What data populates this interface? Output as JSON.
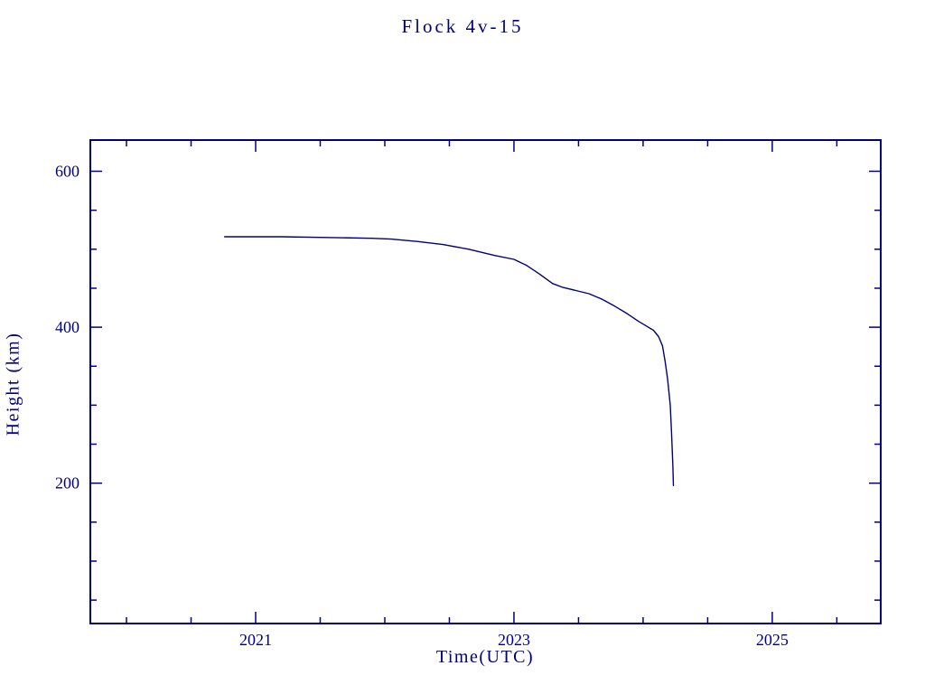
{
  "chart_data": {
    "type": "line",
    "title": "Flock 4v-15",
    "xlabel": "Time(UTC)",
    "ylabel": "Height (km)",
    "xlim": [
      2019.72,
      2025.84
    ],
    "ylim": [
      20,
      640
    ],
    "x_ticks": [
      2021,
      2023,
      2025
    ],
    "x_minor_step": 0.5,
    "y_ticks": [
      200,
      400,
      600
    ],
    "y_minor_step": 50,
    "grid": false,
    "legend": "none",
    "colors": {
      "axis": "#000080",
      "line": "#000080",
      "text": "#000080",
      "background": "#ffffff"
    },
    "series": [
      {
        "name": "Flock 4v-15 orbital height",
        "points": [
          [
            2020.76,
            516
          ],
          [
            2021.2,
            516
          ],
          [
            2021.6,
            515
          ],
          [
            2021.9,
            514
          ],
          [
            2022.05,
            513
          ],
          [
            2022.25,
            510
          ],
          [
            2022.45,
            506
          ],
          [
            2022.65,
            500
          ],
          [
            2022.85,
            492
          ],
          [
            2023.0,
            487
          ],
          [
            2023.1,
            479
          ],
          [
            2023.2,
            468
          ],
          [
            2023.3,
            456
          ],
          [
            2023.38,
            451
          ],
          [
            2023.48,
            447
          ],
          [
            2023.58,
            443
          ],
          [
            2023.68,
            436
          ],
          [
            2023.78,
            427
          ],
          [
            2023.88,
            417
          ],
          [
            2023.96,
            408
          ],
          [
            2024.03,
            401
          ],
          [
            2024.08,
            396
          ],
          [
            2024.12,
            388
          ],
          [
            2024.15,
            376
          ],
          [
            2024.17,
            357
          ],
          [
            2024.19,
            333
          ],
          [
            2024.21,
            300
          ],
          [
            2024.22,
            265
          ],
          [
            2024.23,
            225
          ],
          [
            2024.235,
            197
          ]
        ]
      }
    ]
  }
}
